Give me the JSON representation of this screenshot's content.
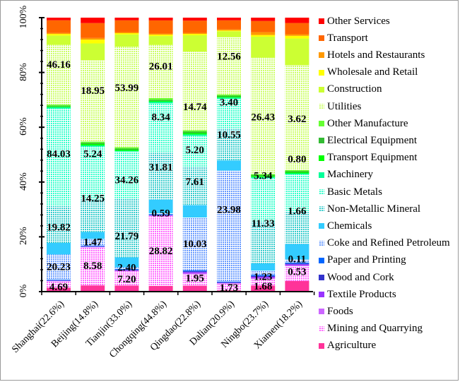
{
  "chart_data": {
    "type": "bar",
    "stacked": true,
    "normalized": true,
    "title": "",
    "xlabel": "",
    "ylabel": "",
    "ylim": [
      0,
      100
    ],
    "y_ticks": [
      "0%",
      "20%",
      "40%",
      "60%",
      "80%",
      "100%"
    ],
    "legend_position": "right",
    "categories": [
      "Shanghai(22.6%)",
      "Beijing(14.8%)",
      "Tianjin(33.0%)",
      "Chongqing(44.8%)",
      "Qingdao(22.8%)",
      "Dalian(20.9%)",
      "Ningbo(23.7%)",
      "Xiamen(18.2%)"
    ],
    "series": [
      {
        "name": "Agriculture",
        "color": "#ff3399",
        "pattern": "solid",
        "values": [
          1.5,
          2.3,
          2.3,
          2.1,
          2.2,
          0.5,
          2.2,
          4.0
        ]
      },
      {
        "name": "Mining and Quarrying",
        "color": "#ff66ff",
        "pattern": "grid",
        "values": [
          2.4,
          14.0,
          5.3,
          25.4,
          4.2,
          2.5,
          2.3,
          5.5
        ]
      },
      {
        "name": "Foods",
        "color": "#cc66ff",
        "pattern": "solid",
        "values": [
          0.2,
          0.2,
          0.2,
          0.2,
          0.4,
          0.2,
          0.4,
          0.4
        ]
      },
      {
        "name": "Textile Products",
        "color": "#9933ff",
        "pattern": "solid",
        "values": [
          0.1,
          0.1,
          0.2,
          0.1,
          0.4,
          0.1,
          0.4,
          0.3
        ]
      },
      {
        "name": "Wood and Cork",
        "color": "#3333cc",
        "pattern": "solid",
        "values": [
          0.1,
          0.1,
          0.2,
          0.1,
          0.3,
          0.2,
          0.3,
          0.3
        ]
      },
      {
        "name": "Paper and Printing",
        "color": "#0066ff",
        "pattern": "solid",
        "values": [
          0.3,
          0.3,
          0.3,
          0.3,
          0.3,
          0.3,
          0.4,
          0.4
        ]
      },
      {
        "name": "Coke and Refined Petroleum",
        "color": "#6699ff",
        "pattern": "grid",
        "values": [
          9.5,
          2.4,
          0.6,
          0.3,
          19.5,
          41.5,
          1.5,
          1.1
        ]
      },
      {
        "name": "Chemicals",
        "color": "#33ccff",
        "pattern": "solid",
        "values": [
          4.4,
          2.6,
          3.7,
          5.0,
          4.6,
          3.8,
          2.6,
          5.8
        ]
      },
      {
        "name": "Non-Metallic Mineral",
        "color": "#33cccc",
        "pattern": "grid",
        "values": [
          14.0,
          12.0,
          22.0,
          17.0,
          14.0,
          12.0,
          15.0,
          12.0
        ]
      },
      {
        "name": "Basic Metals",
        "color": "#33ffcc",
        "pattern": "grid",
        "values": [
          37.0,
          19.5,
          17.5,
          18.0,
          11.5,
          11.0,
          15.5,
          14.0
        ]
      },
      {
        "name": "Machinery",
        "color": "#00ff99",
        "pattern": "solid",
        "values": [
          0.5,
          0.4,
          0.3,
          0.6,
          0.5,
          0.5,
          0.3,
          0.4
        ]
      },
      {
        "name": "Transport Equipment",
        "color": "#00ff00",
        "pattern": "solid",
        "values": [
          0.3,
          0.5,
          0.4,
          0.3,
          0.5,
          0.3,
          0.4,
          0.4
        ]
      },
      {
        "name": "Electrical Equipment",
        "color": "#33bb33",
        "pattern": "solid",
        "values": [
          0.3,
          0.4,
          0.4,
          0.4,
          0.5,
          0.4,
          0.3,
          0.4
        ]
      },
      {
        "name": "Other Manufacture",
        "color": "#66ff33",
        "pattern": "solid",
        "values": [
          0.4,
          0.5,
          0.5,
          0.6,
          0.5,
          0.4,
          0.4,
          0.4
        ]
      },
      {
        "name": "Utilities",
        "color": "#ccff66",
        "pattern": "grid",
        "values": [
          22.7,
          30.0,
          37.6,
          19.4,
          29.0,
          21.5,
          41.5,
          39.2
        ]
      },
      {
        "name": "Construction",
        "color": "#ccff33",
        "pattern": "solid",
        "values": [
          3.5,
          6.2,
          4.5,
          3.2,
          6.0,
          2.2,
          7.5,
          10.0
        ]
      },
      {
        "name": "Wholesale and Retail",
        "color": "#ffff00",
        "pattern": "solid",
        "values": [
          0.6,
          1.4,
          0.5,
          0.5,
          0.5,
          0.3,
          0.6,
          1.0
        ]
      },
      {
        "name": "Hotels and Restaurants",
        "color": "#ff9900",
        "pattern": "solid",
        "values": [
          0.4,
          0.6,
          0.4,
          0.4,
          0.4,
          0.4,
          1.0,
          0.6
        ]
      },
      {
        "name": "Transport",
        "color": "#ff6600",
        "pattern": "solid",
        "values": [
          4.8,
          5.5,
          4.4,
          4.8,
          4.5,
          3.4,
          4.0,
          4.2
        ]
      },
      {
        "name": "Other Services",
        "color": "#ff0000",
        "pattern": "solid",
        "values": [
          1.0,
          2.0,
          1.0,
          1.0,
          1.1,
          1.0,
          1.2,
          2.0
        ]
      }
    ],
    "data_labels": [
      {
        "category": "Shanghai(22.6%)",
        "items": [
          {
            "text": "4.69",
            "y": 1.8
          },
          {
            "text": "20.23",
            "y": 9.2
          },
          {
            "text": "19.82",
            "y": 23.6
          },
          {
            "text": "84.03",
            "y": 50.4
          },
          {
            "text": "46.16",
            "y": 83.0
          }
        ]
      },
      {
        "category": "Beijing(14.8%)",
        "items": [
          {
            "text": "8.58",
            "y": 9.5
          },
          {
            "text": "1.47",
            "y": 18.2
          },
          {
            "text": "14.25",
            "y": 34.2
          },
          {
            "text": "5.24",
            "y": 50.4
          },
          {
            "text": "18.95",
            "y": 73.4
          }
        ]
      },
      {
        "category": "Tianjin(33.0%)",
        "items": [
          {
            "text": "7.20",
            "y": 4.7
          },
          {
            "text": "2.40",
            "y": 8.9
          },
          {
            "text": "21.79",
            "y": 20.3
          },
          {
            "text": "34.26",
            "y": 40.8
          },
          {
            "text": "53.99",
            "y": 74.5
          }
        ]
      },
      {
        "category": "Chongqing(44.8%)",
        "items": [
          {
            "text": "28.82",
            "y": 15.0
          },
          {
            "text": "0.59",
            "y": 28.7
          },
          {
            "text": "31.81",
            "y": 45.5
          },
          {
            "text": "8.34",
            "y": 63.8
          },
          {
            "text": "26.01",
            "y": 82.3
          }
        ]
      },
      {
        "category": "Qingdao(22.8%)",
        "items": [
          {
            "text": "1.95",
            "y": 5.0
          },
          {
            "text": "10.03",
            "y": 17.5
          },
          {
            "text": "7.61",
            "y": 40.2
          },
          {
            "text": "5.20",
            "y": 51.8
          },
          {
            "text": "14.74",
            "y": 67.5
          }
        ]
      },
      {
        "category": "Dalian(20.9%)",
        "items": [
          {
            "text": "1.73",
            "y": 1.6
          },
          {
            "text": "23.98",
            "y": 30.0
          },
          {
            "text": "10.55",
            "y": 57.3
          },
          {
            "text": "3.40",
            "y": 69.2
          },
          {
            "text": "12.56",
            "y": 86.0
          }
        ]
      },
      {
        "category": "Ningbo(23.7%)",
        "items": [
          {
            "text": "1.68",
            "y": 2.0
          },
          {
            "text": "1.23",
            "y": 5.5
          },
          {
            "text": "11.33",
            "y": 25.0
          },
          {
            "text": "5.34",
            "y": 42.4
          },
          {
            "text": "26.43",
            "y": 63.8
          }
        ]
      },
      {
        "category": "Xiamen(18.2%)",
        "items": [
          {
            "text": "0.53",
            "y": 7.4
          },
          {
            "text": "0.11",
            "y": 12.0
          },
          {
            "text": "1.66",
            "y": 29.5
          },
          {
            "text": "0.80",
            "y": 48.4
          },
          {
            "text": "3.62",
            "y": 63.2
          }
        ]
      }
    ]
  }
}
